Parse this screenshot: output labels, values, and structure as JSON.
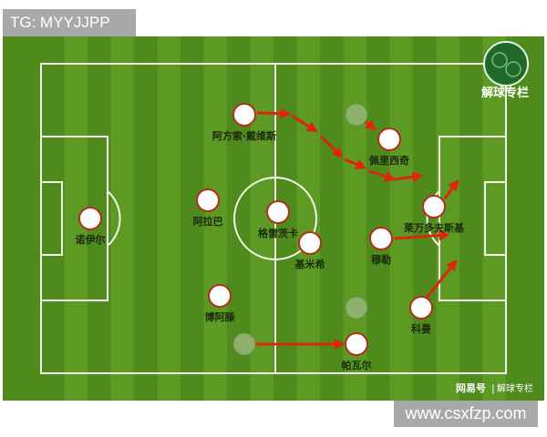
{
  "watermark_top": "TG: MYYJJPP",
  "watermark_bottom": "www.csxfzp.com",
  "logo": {
    "text": "解球专栏"
  },
  "footer": {
    "source": "网易号",
    "column": "解球专栏"
  },
  "players": [
    {
      "name": "诺伊尔"
    },
    {
      "name": "阿拉巴"
    },
    {
      "name": "博阿滕"
    },
    {
      "name": "格雷茨卡"
    },
    {
      "name": "基米希"
    },
    {
      "name": "阿方索·戴维斯"
    },
    {
      "name": "佩里西奇"
    },
    {
      "name": "莱万多夫斯基"
    },
    {
      "name": "穆勒"
    },
    {
      "name": "科曼"
    },
    {
      "name": "帕瓦尔"
    }
  ],
  "colors": {
    "pitch_dark": "#4e8a1c",
    "pitch_light": "#5c9a24",
    "arrow": "#e0250f",
    "player_outline": "#b0301a"
  }
}
